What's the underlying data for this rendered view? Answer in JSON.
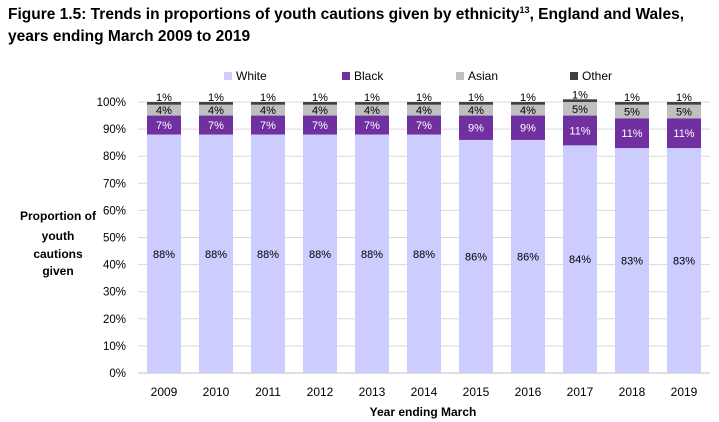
{
  "figure": {
    "title_before": "Figure 1.5: Trends in proportions of youth cautions given by ethnicity",
    "title_superscript": "13",
    "title_after": ", England and Wales, years ending March 2009 to 2019"
  },
  "chart_data": {
    "type": "bar",
    "stacked": true,
    "categories": [
      "2009",
      "2010",
      "2011",
      "2012",
      "2013",
      "2014",
      "2015",
      "2016",
      "2017",
      "2018",
      "2019"
    ],
    "series": [
      {
        "name": "White",
        "color": "#ccccff",
        "values": [
          88,
          88,
          88,
          88,
          88,
          88,
          86,
          86,
          84,
          83,
          83
        ]
      },
      {
        "name": "Black",
        "color": "#7030a0",
        "values": [
          7,
          7,
          7,
          7,
          7,
          7,
          9,
          9,
          11,
          11,
          11
        ]
      },
      {
        "name": "Asian",
        "color": "#bfbfbf",
        "values": [
          4,
          4,
          4,
          4,
          4,
          4,
          4,
          4,
          5,
          5,
          5
        ]
      },
      {
        "name": "Other",
        "color": "#404040",
        "values": [
          1,
          1,
          1,
          1,
          1,
          1,
          1,
          1,
          1,
          1,
          1
        ]
      }
    ],
    "data_labels": [
      [
        "88%",
        "88%",
        "88%",
        "88%",
        "88%",
        "88%",
        "86%",
        "86%",
        "84%",
        "83%",
        "83%"
      ],
      [
        "7%",
        "7%",
        "7%",
        "7%",
        "7%",
        "7%",
        "9%",
        "9%",
        "11%",
        "11%",
        "11%"
      ],
      [
        "4%",
        "4%",
        "4%",
        "4%",
        "4%",
        "4%",
        "4%",
        "4%",
        "5%",
        "5%",
        "5%"
      ],
      [
        "1%",
        "1%",
        "1%",
        "1%",
        "1%",
        "1%",
        "1%",
        "1%",
        "1%",
        "1%",
        "1%"
      ]
    ],
    "xlabel": "Year ending March",
    "ylabel_lines": [
      "Proportion of",
      "youth",
      "cautions",
      "given"
    ],
    "ylim": [
      0,
      100
    ],
    "yticks": [
      "0%",
      "10%",
      "20%",
      "30%",
      "40%",
      "50%",
      "60%",
      "70%",
      "80%",
      "90%",
      "100%"
    ],
    "grid": true,
    "legend_position": "top"
  }
}
